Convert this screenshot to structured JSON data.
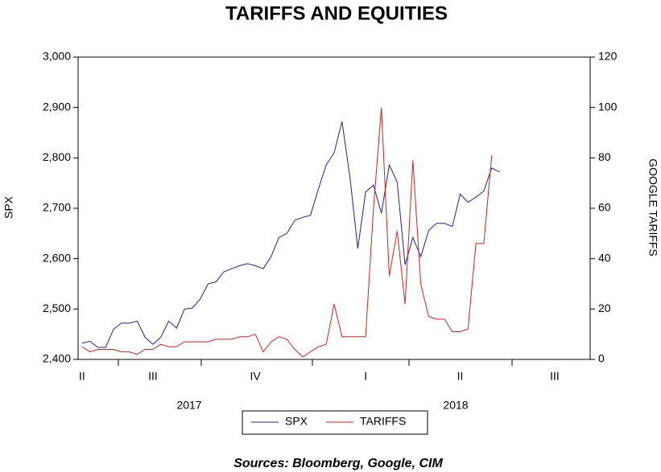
{
  "chart_data": {
    "type": "line",
    "title": "TARIFFS AND EQUITIES",
    "source": "Sources: Bloomberg, Google, CIM",
    "ylabel": "SPX",
    "y2label": "GOOGLE TARIFFS",
    "years": [
      "2017",
      "2018"
    ],
    "categories": [
      "II",
      null,
      null,
      null,
      null,
      null,
      null,
      null,
      null,
      "III",
      null,
      null,
      null,
      null,
      null,
      null,
      null,
      null,
      null,
      null,
      null,
      null,
      "IV",
      null,
      null,
      null,
      null,
      null,
      null,
      null,
      null,
      null,
      null,
      null,
      null,
      null,
      "I",
      null,
      null,
      null,
      null,
      null,
      null,
      null,
      null,
      null,
      null,
      null,
      "II",
      null,
      null,
      null,
      null,
      null,
      null,
      null,
      null,
      null,
      null,
      null,
      "III",
      null,
      null,
      null,
      null
    ],
    "series": [
      {
        "name": "SPX",
        "color": "#1f1fa0",
        "axis": "y",
        "values": [
          2432,
          2436,
          2424,
          2424,
          2460,
          2472,
          2472,
          2476,
          2444,
          2430,
          2444,
          2476,
          2462,
          2500,
          2502,
          2520,
          2550,
          2554,
          2574,
          2580,
          2586,
          2590,
          2586,
          2580,
          2604,
          2642,
          2650,
          2676,
          2682,
          2686,
          2738,
          2786,
          2810,
          2872,
          2762,
          2620,
          2732,
          2746,
          2690,
          2786,
          2752,
          2588,
          2642,
          2604,
          2656,
          2670,
          2670,
          2664,
          2728,
          2712,
          2722,
          2734,
          2780,
          2772,
          null,
          null,
          null,
          null,
          null,
          null,
          null,
          null,
          null,
          null,
          null
        ]
      },
      {
        "name": "TARIFFS",
        "color": "#d42020",
        "axis": "y2",
        "values": [
          5,
          3,
          4,
          4,
          4,
          3,
          3,
          2,
          4,
          4,
          6,
          5,
          5,
          7,
          7,
          7,
          7,
          8,
          8,
          8,
          9,
          9,
          10,
          3,
          7,
          9,
          8,
          4,
          1,
          3,
          5,
          6,
          22,
          9,
          9,
          9,
          9,
          60,
          100,
          33,
          51,
          22,
          79,
          30,
          17,
          16,
          16,
          11,
          11,
          12,
          46,
          46,
          81,
          null,
          null,
          null,
          null,
          null,
          null,
          null,
          null,
          null,
          null,
          null,
          null
        ]
      }
    ],
    "ylim": [
      2400,
      3000
    ],
    "yticks": [
      {
        "value": 2400,
        "label": "2,400"
      },
      {
        "value": 2500,
        "label": "2,500"
      },
      {
        "value": 2600,
        "label": "2,600"
      },
      {
        "value": 2700,
        "label": "2,700"
      },
      {
        "value": 2800,
        "label": "2,800"
      },
      {
        "value": 2900,
        "label": "2,900"
      },
      {
        "value": 3000,
        "label": "3,000"
      }
    ],
    "y2lim": [
      0,
      120
    ],
    "y2ticks": [
      0,
      20,
      40,
      60,
      80,
      100,
      120
    ],
    "grid": false,
    "legend": "bottom"
  }
}
